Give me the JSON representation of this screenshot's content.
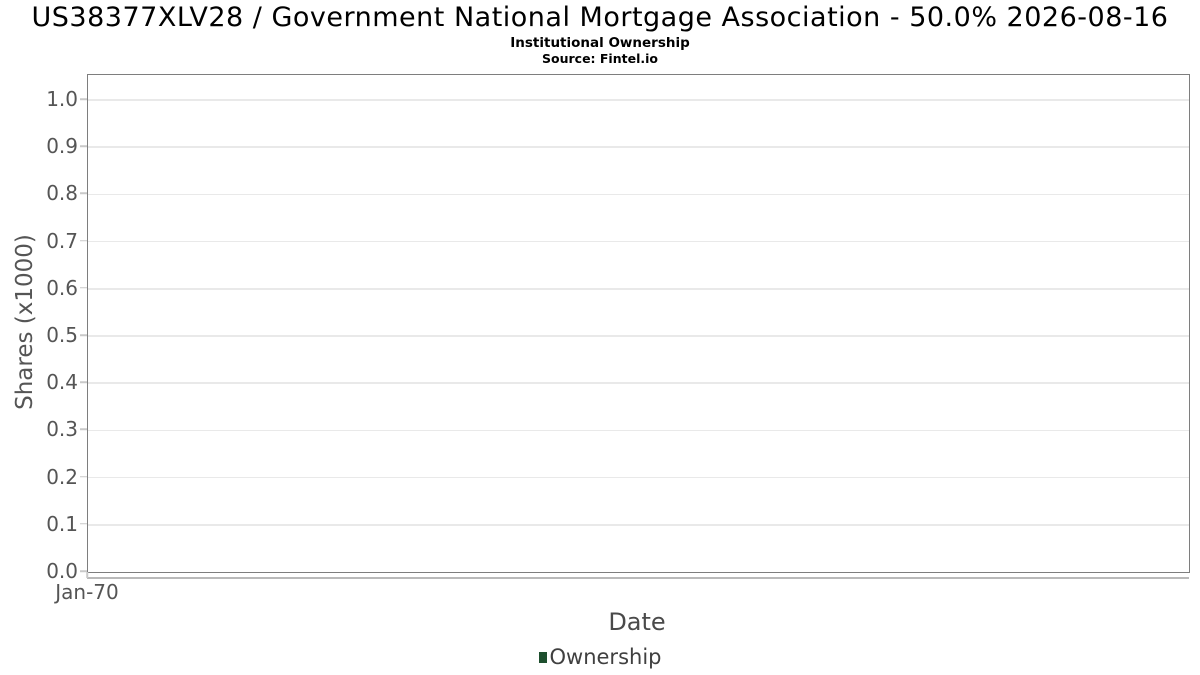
{
  "header": {
    "title": "US38377XLV28 / Government National Mortgage Association - 50.0% 2026-08-16",
    "subtitle": "Institutional Ownership",
    "source": "Source: Fintel.io"
  },
  "chart_data": {
    "type": "line",
    "title": "US38377XLV28 / Government National Mortgage Association - 50.0% 2026-08-16",
    "subtitle": "Institutional Ownership",
    "source": "Source: Fintel.io",
    "xlabel": "Date",
    "ylabel": "Shares (x1000)",
    "x_tick_labels": [
      "Jan-70"
    ],
    "y_tick_labels": [
      "0.0",
      "0.1",
      "0.2",
      "0.3",
      "0.4",
      "0.5",
      "0.6",
      "0.7",
      "0.8",
      "0.9",
      "1.0"
    ],
    "ylim": [
      0,
      1.05
    ],
    "grid": "horizontal",
    "legend_position": "bottom-center",
    "series": [
      {
        "name": "Ownership",
        "color": "#1e4f2e",
        "x": [],
        "values": []
      }
    ],
    "plot_is_empty": true
  },
  "colors": {
    "background": "#ffffff",
    "title_text": "#000000",
    "axis_text": "#555555",
    "plot_border": "#7e7e7e",
    "gridline": "#e9e9e9",
    "tick_mark": "#c9c9c9",
    "axis_line": "#b9b9b9",
    "legend_text": "#404040",
    "ownership_series": "#1e4f2e"
  }
}
